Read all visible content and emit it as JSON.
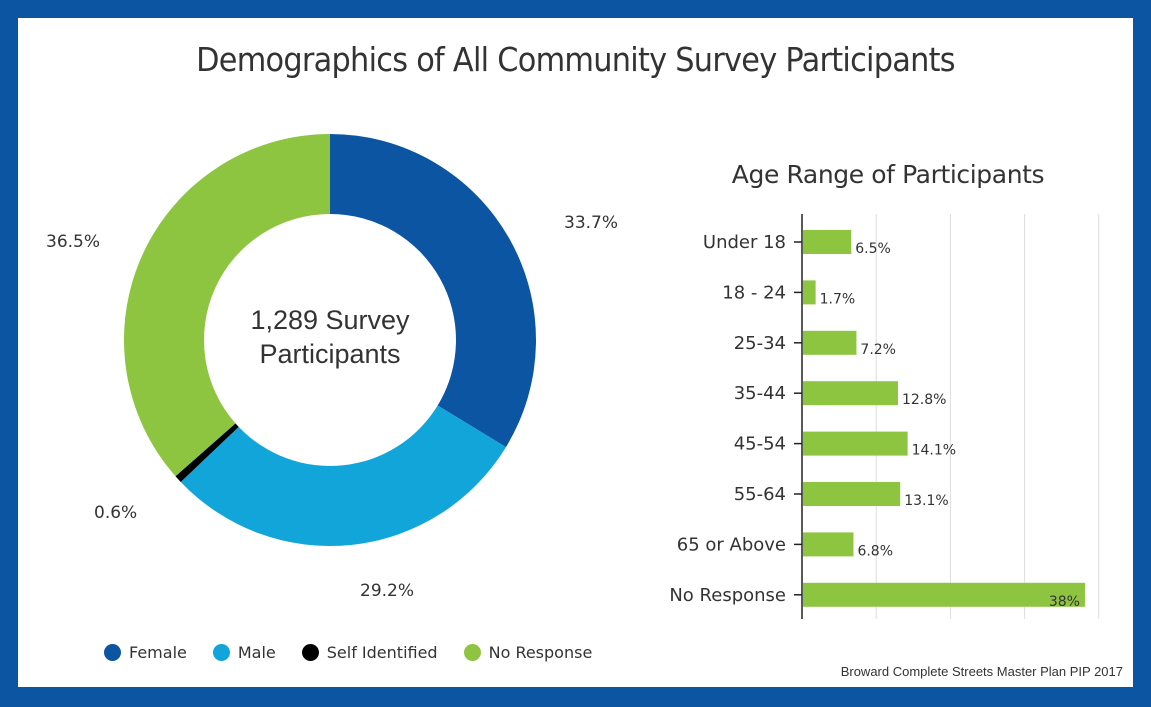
{
  "title": "Demographics of All Community Survey Participants",
  "source": "Broward Complete Streets Master Plan PIP 2017",
  "colors": {
    "frame": "#0b55a3",
    "female": "#0b55a3",
    "male": "#12a5da",
    "self_identified": "#000000",
    "no_response": "#8dc541"
  },
  "chart_data": [
    {
      "type": "pie",
      "subtype": "donut",
      "center_text": [
        "1,289 Survey",
        "Participants"
      ],
      "slices": [
        {
          "name": "Female",
          "value": 33.7,
          "label": "33.7%",
          "color": "#0b55a3"
        },
        {
          "name": "Male",
          "value": 29.2,
          "label": "29.2%",
          "color": "#12a5da"
        },
        {
          "name": "Self Identified",
          "value": 0.6,
          "label": "0.6%",
          "color": "#000000"
        },
        {
          "name": "No Response",
          "value": 36.5,
          "label": "36.5%",
          "color": "#8dc541"
        }
      ],
      "legend": [
        "Female",
        "Male",
        "Self Identified",
        "No Response"
      ],
      "legend_position": "bottom"
    },
    {
      "type": "bar",
      "orientation": "horizontal",
      "title": "Age Range of Participants",
      "categories": [
        "Under 18",
        "18 - 24",
        "25-34",
        "35-44",
        "45-54",
        "55-64",
        "65 or Above",
        "No Response"
      ],
      "values": [
        6.5,
        1.7,
        7.2,
        12.8,
        14.1,
        13.1,
        6.8,
        38
      ],
      "labels": [
        "6.5%",
        "1.7%",
        "7.2%",
        "12.8%",
        "14.1%",
        "13.1%",
        "6.8%",
        "38%"
      ],
      "xlim": [
        0,
        40
      ],
      "grid": true,
      "bar_color": "#8dc541"
    }
  ]
}
